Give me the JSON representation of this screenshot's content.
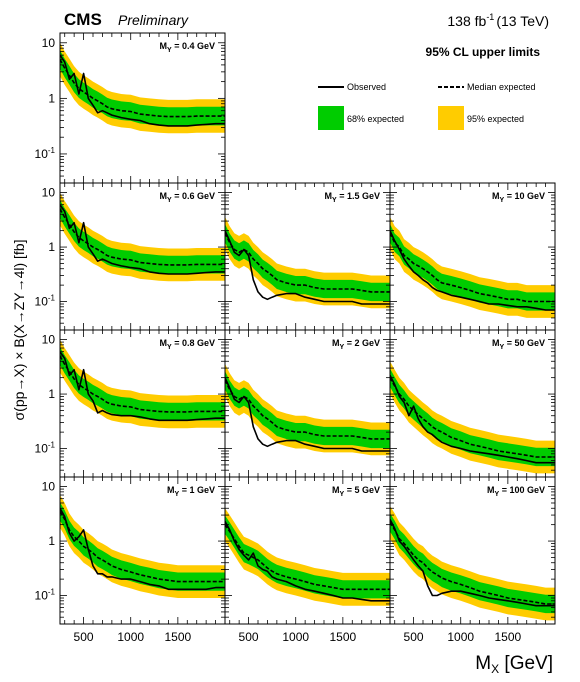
{
  "header": {
    "experiment": "CMS",
    "status": "Preliminary",
    "lumi_sup": "-1",
    "lumi_prefix": "138 fb",
    "lumi_suffix": "(13 TeV)",
    "cl_title": "95% CL upper limits"
  },
  "legend": {
    "observed": "Observed",
    "median": "Median expected",
    "band68": "68% expected",
    "band95": "95% expected"
  },
  "colors": {
    "band68": "#00cc00",
    "band95": "#ffcc00",
    "observed": "#000000",
    "median": "#000000"
  },
  "axes": {
    "ylabel": "σ(pp→X) × B(X→ZY→4l) [fb]",
    "xlabel": "M_X [GeV]",
    "x_ticks": [
      "500",
      "1000",
      "1500"
    ],
    "y_ticks": [
      "10",
      "1",
      "10^-1"
    ],
    "xlim": [
      250,
      2000
    ],
    "ylim": [
      0.03,
      15
    ],
    "yscale": "log"
  },
  "chart_data": {
    "type": "line",
    "title": "",
    "xlabel": "M_X [GeV]",
    "ylabel": "σ(pp→X) × B(X→ZY→4l) [fb]",
    "xscale": "linear",
    "yscale": "log",
    "xlim": [
      250,
      2000
    ],
    "ylim": [
      0.03,
      15
    ],
    "x": [
      250,
      300,
      350,
      400,
      450,
      500,
      550,
      600,
      650,
      700,
      750,
      800,
      900,
      1000,
      1100,
      1200,
      1300,
      1400,
      1500,
      1600,
      1700,
      1800,
      1900,
      2000
    ],
    "panels": [
      {
        "label": "M_Y = 0.4 GeV",
        "row": 0,
        "col": 0,
        "expected": [
          5,
          3.5,
          2.6,
          1.9,
          1.5,
          1.3,
          1.15,
          1.0,
          0.9,
          0.8,
          0.7,
          0.65,
          0.6,
          0.58,
          0.52,
          0.5,
          0.48,
          0.47,
          0.47,
          0.47,
          0.48,
          0.48,
          0.48,
          0.48
        ],
        "observed": [
          6,
          4.5,
          2.2,
          2.8,
          1.2,
          2.8,
          1.0,
          0.75,
          0.55,
          0.6,
          0.55,
          0.5,
          0.45,
          0.42,
          0.4,
          0.35,
          0.33,
          0.32,
          0.32,
          0.32,
          0.33,
          0.34,
          0.35,
          0.35
        ]
      },
      {
        "label": "M_Y = 0.6 GeV",
        "row": 1,
        "col": 0,
        "expected": [
          5,
          3.5,
          2.6,
          1.9,
          1.5,
          1.3,
          1.15,
          1.0,
          0.9,
          0.8,
          0.7,
          0.65,
          0.6,
          0.58,
          0.52,
          0.5,
          0.48,
          0.47,
          0.47,
          0.47,
          0.48,
          0.48,
          0.48,
          0.48
        ],
        "observed": [
          6,
          4.5,
          2.2,
          2.8,
          1.2,
          2.8,
          1.0,
          0.75,
          0.55,
          0.6,
          0.55,
          0.5,
          0.45,
          0.42,
          0.4,
          0.35,
          0.33,
          0.32,
          0.32,
          0.32,
          0.33,
          0.34,
          0.35,
          0.35
        ]
      },
      {
        "label": "M_Y = 1.5 GeV",
        "row": 1,
        "col": 1,
        "expected": [
          1.8,
          1.2,
          0.9,
          0.8,
          0.9,
          0.8,
          0.6,
          0.5,
          0.4,
          0.35,
          0.3,
          0.25,
          0.22,
          0.2,
          0.2,
          0.18,
          0.17,
          0.17,
          0.17,
          0.17,
          0.16,
          0.15,
          0.15,
          0.15
        ],
        "observed": [
          2.0,
          1.3,
          0.8,
          0.7,
          0.9,
          0.7,
          0.25,
          0.15,
          0.12,
          0.11,
          0.12,
          0.13,
          0.14,
          0.14,
          0.12,
          0.11,
          0.1,
          0.1,
          0.1,
          0.1,
          0.09,
          0.09,
          0.09,
          0.09
        ]
      },
      {
        "label": "M_Y = 10 GeV",
        "row": 1,
        "col": 2,
        "expected": [
          1.8,
          1.2,
          1.0,
          0.7,
          0.6,
          0.5,
          0.45,
          0.4,
          0.35,
          0.3,
          0.25,
          0.22,
          0.2,
          0.18,
          0.16,
          0.14,
          0.13,
          0.12,
          0.11,
          0.11,
          0.1,
          0.1,
          0.1,
          0.1
        ],
        "observed": [
          2.0,
          1.3,
          0.9,
          0.6,
          0.45,
          0.35,
          0.3,
          0.25,
          0.22,
          0.18,
          0.16,
          0.15,
          0.13,
          0.12,
          0.11,
          0.1,
          0.09,
          0.09,
          0.085,
          0.08,
          0.08,
          0.075,
          0.07,
          0.07
        ]
      },
      {
        "label": "M_Y = 0.8 GeV",
        "row": 2,
        "col": 0,
        "expected": [
          5,
          3.5,
          2.6,
          1.9,
          1.5,
          1.3,
          1.15,
          1.0,
          0.9,
          0.8,
          0.7,
          0.65,
          0.6,
          0.58,
          0.52,
          0.5,
          0.48,
          0.47,
          0.47,
          0.47,
          0.48,
          0.48,
          0.48,
          0.48
        ],
        "observed": [
          6,
          4.5,
          2.2,
          2.8,
          1.2,
          2.8,
          1.0,
          0.75,
          0.45,
          0.5,
          0.45,
          0.42,
          0.4,
          0.4,
          0.38,
          0.35,
          0.33,
          0.33,
          0.33,
          0.33,
          0.34,
          0.35,
          0.36,
          0.36
        ]
      },
      {
        "label": "M_Y = 2 GeV",
        "row": 2,
        "col": 1,
        "expected": [
          1.8,
          1.2,
          0.9,
          0.8,
          0.9,
          0.8,
          0.6,
          0.5,
          0.4,
          0.35,
          0.3,
          0.25,
          0.22,
          0.2,
          0.2,
          0.18,
          0.17,
          0.17,
          0.17,
          0.17,
          0.16,
          0.15,
          0.15,
          0.15
        ],
        "observed": [
          2.0,
          1.3,
          0.8,
          0.7,
          0.9,
          0.7,
          0.25,
          0.15,
          0.12,
          0.11,
          0.12,
          0.13,
          0.14,
          0.14,
          0.12,
          0.11,
          0.1,
          0.1,
          0.1,
          0.1,
          0.09,
          0.09,
          0.09,
          0.09
        ]
      },
      {
        "label": "M_Y = 50 GeV",
        "row": 2,
        "col": 2,
        "expected": [
          2.0,
          1.4,
          1.0,
          0.8,
          0.6,
          0.5,
          0.42,
          0.35,
          0.3,
          0.25,
          0.22,
          0.2,
          0.16,
          0.14,
          0.12,
          0.11,
          0.1,
          0.09,
          0.085,
          0.08,
          0.075,
          0.07,
          0.07,
          0.07
        ],
        "observed": [
          2.2,
          1.5,
          0.9,
          0.7,
          0.4,
          0.6,
          0.35,
          0.25,
          0.2,
          0.18,
          0.15,
          0.13,
          0.11,
          0.1,
          0.09,
          0.085,
          0.08,
          0.075,
          0.07,
          0.065,
          0.06,
          0.055,
          0.055,
          0.055
        ]
      },
      {
        "label": "M_Y = 1 GeV",
        "row": 3,
        "col": 0,
        "expected": [
          3.5,
          2.5,
          1.6,
          1.2,
          1.0,
          0.8,
          0.7,
          0.6,
          0.5,
          0.45,
          0.4,
          0.35,
          0.3,
          0.27,
          0.24,
          0.22,
          0.2,
          0.19,
          0.18,
          0.18,
          0.18,
          0.18,
          0.18,
          0.18
        ],
        "observed": [
          4.0,
          2.8,
          1.4,
          1.0,
          1.2,
          1.6,
          0.7,
          0.35,
          0.25,
          0.25,
          0.22,
          0.22,
          0.2,
          0.2,
          0.18,
          0.16,
          0.15,
          0.13,
          0.13,
          0.13,
          0.13,
          0.13,
          0.14,
          0.14
        ]
      },
      {
        "label": "M_Y = 5 GeV",
        "row": 3,
        "col": 1,
        "expected": [
          2.0,
          1.5,
          1.1,
          0.8,
          0.6,
          0.55,
          0.5,
          0.45,
          0.38,
          0.32,
          0.28,
          0.25,
          0.22,
          0.2,
          0.18,
          0.16,
          0.15,
          0.14,
          0.13,
          0.13,
          0.13,
          0.13,
          0.13,
          0.13
        ],
        "observed": [
          2.3,
          1.6,
          1.0,
          0.7,
          0.55,
          0.45,
          0.6,
          0.35,
          0.3,
          0.28,
          0.22,
          0.2,
          0.18,
          0.15,
          0.13,
          0.12,
          0.11,
          0.1,
          0.09,
          0.09,
          0.085,
          0.08,
          0.08,
          0.08
        ]
      },
      {
        "label": "M_Y = 100 GeV",
        "row": 3,
        "col": 2,
        "expected": [
          2.2,
          1.6,
          1.1,
          0.9,
          0.7,
          0.55,
          0.45,
          0.4,
          0.32,
          0.27,
          0.24,
          0.21,
          0.18,
          0.16,
          0.14,
          0.12,
          0.11,
          0.1,
          0.09,
          0.085,
          0.08,
          0.075,
          0.07,
          0.07
        ],
        "observed": [
          2.5,
          1.7,
          1.0,
          0.8,
          0.6,
          0.45,
          0.35,
          0.28,
          0.15,
          0.1,
          0.1,
          0.11,
          0.12,
          0.12,
          0.11,
          0.1,
          0.09,
          0.085,
          0.08,
          0.075,
          0.07,
          0.065,
          0.065,
          0.065
        ]
      }
    ]
  }
}
